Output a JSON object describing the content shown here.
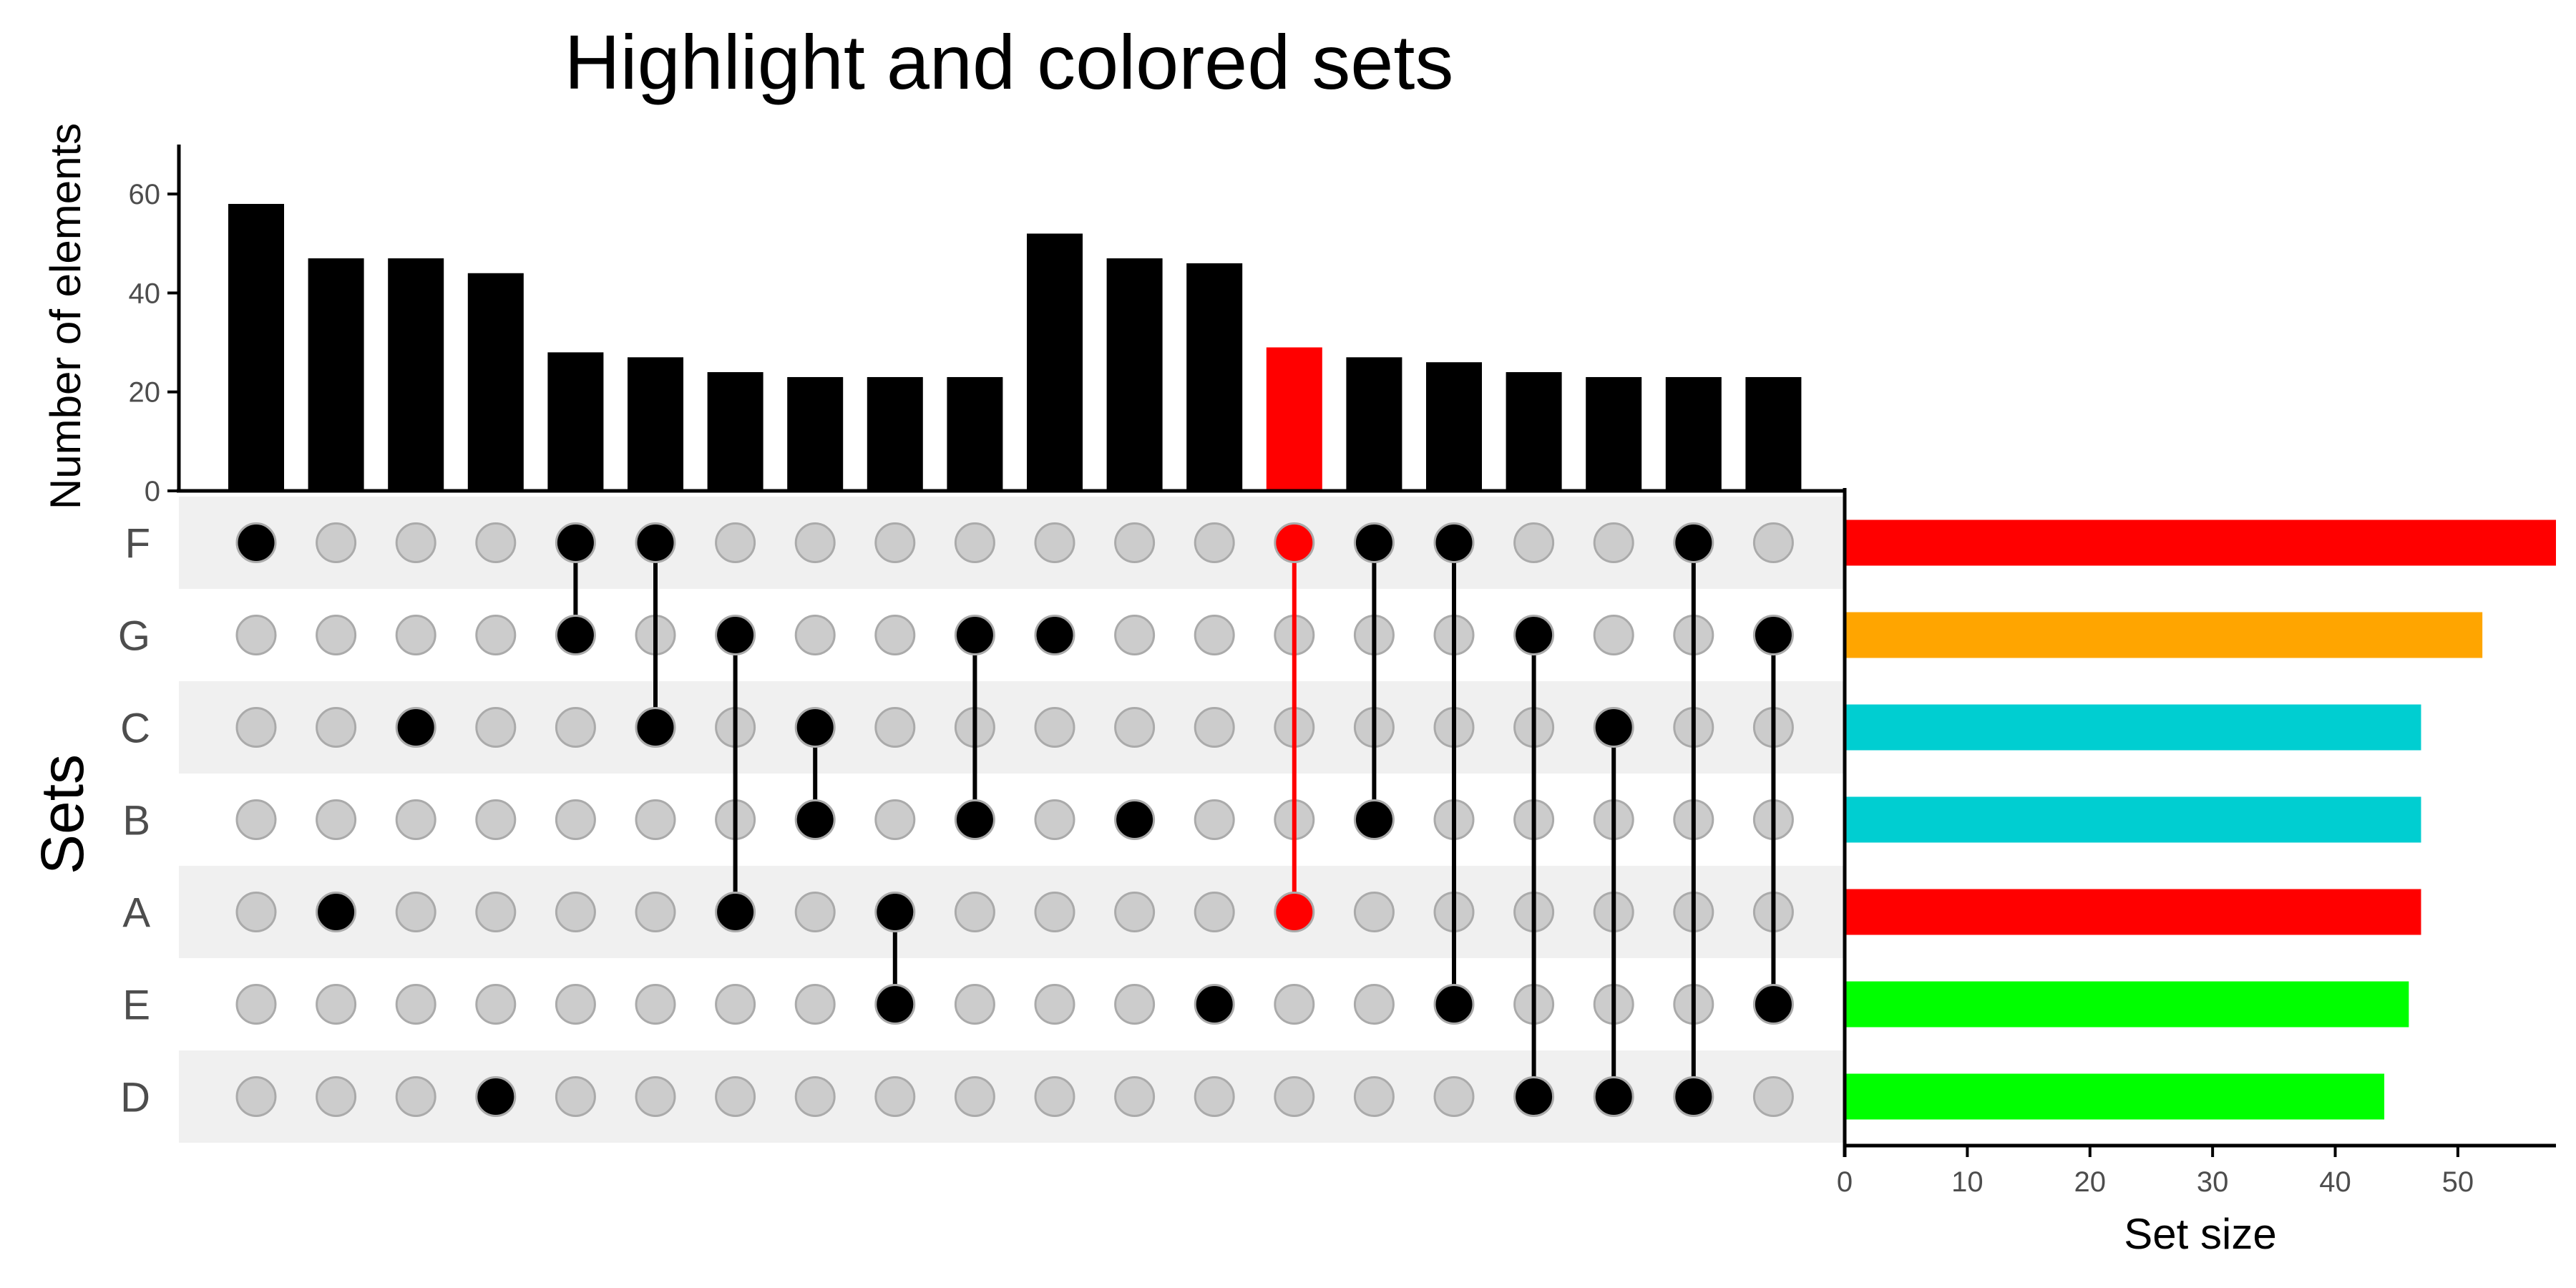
{
  "chart_data": {
    "type": "upset",
    "title": "Highlight and colored sets",
    "intersection_axis": {
      "label": "Number of elements",
      "ticks": [
        0,
        20,
        40,
        60
      ],
      "range": [
        0,
        70
      ]
    },
    "set_size_axis": {
      "label": "Set size",
      "ticks": [
        0,
        10,
        20,
        30,
        40,
        50
      ],
      "range": [
        0,
        58
      ]
    },
    "sets_label": "Sets",
    "sets": [
      {
        "name": "F",
        "size": 58,
        "color": "#FF0000"
      },
      {
        "name": "G",
        "size": 52,
        "color": "#FFA500"
      },
      {
        "name": "C",
        "size": 47,
        "color": "#00CED1"
      },
      {
        "name": "B",
        "size": 47,
        "color": "#00CED1"
      },
      {
        "name": "A",
        "size": 47,
        "color": "#FF0000"
      },
      {
        "name": "E",
        "size": 46,
        "color": "#00FF00"
      },
      {
        "name": "D",
        "size": 44,
        "color": "#00FF00"
      }
    ],
    "intersections": [
      {
        "sets": [
          "F"
        ],
        "value": 58
      },
      {
        "sets": [
          "A"
        ],
        "value": 47
      },
      {
        "sets": [
          "C"
        ],
        "value": 47
      },
      {
        "sets": [
          "D"
        ],
        "value": 44
      },
      {
        "sets": [
          "F",
          "G"
        ],
        "value": 28
      },
      {
        "sets": [
          "F",
          "C"
        ],
        "value": 27
      },
      {
        "sets": [
          "G",
          "A"
        ],
        "value": 24
      },
      {
        "sets": [
          "C",
          "B"
        ],
        "value": 23
      },
      {
        "sets": [
          "A",
          "E"
        ],
        "value": 23
      },
      {
        "sets": [
          "G",
          "B"
        ],
        "value": 23
      },
      {
        "sets": [
          "G"
        ],
        "value": 52
      },
      {
        "sets": [
          "B"
        ],
        "value": 47
      },
      {
        "sets": [
          "E"
        ],
        "value": 46
      },
      {
        "sets": [
          "F",
          "A"
        ],
        "value": 29,
        "highlight": true
      },
      {
        "sets": [
          "F",
          "B"
        ],
        "value": 27
      },
      {
        "sets": [
          "F",
          "E"
        ],
        "value": 26
      },
      {
        "sets": [
          "G",
          "D"
        ],
        "value": 24
      },
      {
        "sets": [
          "C",
          "D"
        ],
        "value": 23
      },
      {
        "sets": [
          "F",
          "D"
        ],
        "value": 23
      },
      {
        "sets": [
          "G",
          "E"
        ],
        "value": 23
      }
    ],
    "colors": {
      "bar": "#000000",
      "highlight": "#FF0000",
      "dot_active": "#000000",
      "dot_inactive": "#CCCCCC",
      "dot_inactive_stroke": "#AAAAAA",
      "stripe": "#F0F0F0",
      "axis": "#000000"
    }
  }
}
